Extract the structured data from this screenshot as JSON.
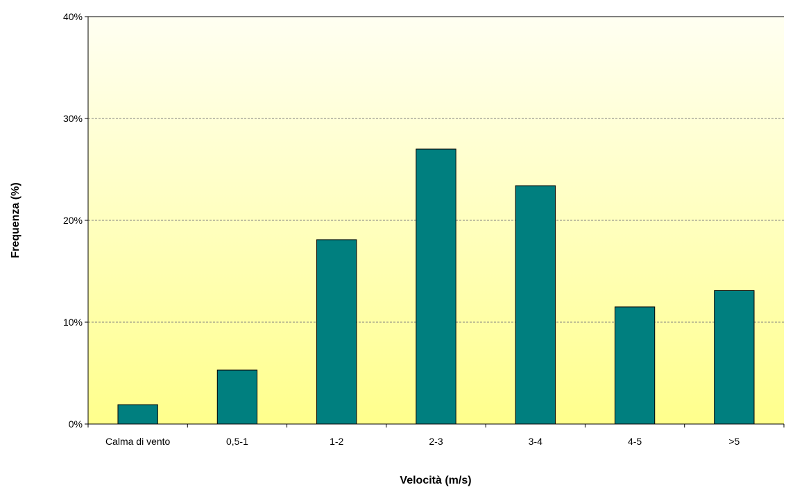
{
  "chart_data": {
    "type": "bar",
    "title": "",
    "xlabel": "Velocità (m/s)",
    "ylabel": "Frequenza (%)",
    "categories": [
      "Calma di vento",
      "0,5-1",
      "1-2",
      "2-3",
      "3-4",
      "4-5",
      ">5"
    ],
    "values": [
      1.9,
      5.3,
      18.1,
      27.0,
      23.4,
      11.5,
      13.1
    ],
    "ylim": [
      0,
      40
    ],
    "yticks": [
      0,
      10,
      20,
      30,
      40
    ],
    "ytick_labels": [
      "0%",
      "10%",
      "20%",
      "30%",
      "40%"
    ],
    "grid": true,
    "legend": "none",
    "bar_color": "#007F7F",
    "plot_bg_top": "#FFFFF2",
    "plot_bg_bottom": "#FFFF8C"
  }
}
